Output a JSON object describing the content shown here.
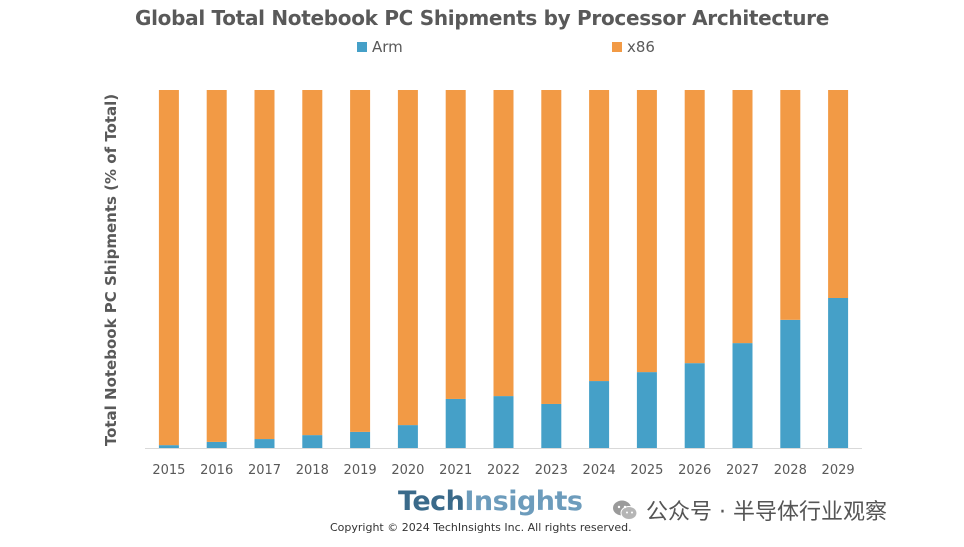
{
  "chart_data": {
    "type": "bar",
    "stacked": true,
    "percent_stacked": true,
    "title": "Global Total Notebook PC Shipments by Processor Architecture",
    "xlabel": "",
    "ylabel": "Total Notebook PC Shipments (% of Total)",
    "ylim": [
      0,
      100
    ],
    "grid": false,
    "legend_position": "top",
    "categories": [
      "2015",
      "2016",
      "2017",
      "2018",
      "2019",
      "2020",
      "2021",
      "2022",
      "2023",
      "2024",
      "2025",
      "2026",
      "2027",
      "2028",
      "2029"
    ],
    "series": [
      {
        "name": "Arm",
        "color": "#45a0c8",
        "values": [
          0.8,
          1.7,
          2.5,
          3.6,
          4.5,
          6.4,
          13.7,
          14.5,
          12.3,
          18.7,
          21.2,
          23.7,
          29.3,
          35.8,
          41.9
        ]
      },
      {
        "name": "x86",
        "color": "#f29a45",
        "values": [
          99.2,
          98.3,
          97.5,
          96.4,
          95.5,
          93.6,
          86.3,
          85.5,
          87.7,
          81.3,
          78.8,
          76.3,
          70.7,
          64.2,
          58.1
        ]
      }
    ]
  },
  "legend": {
    "arm": "Arm",
    "x86": "x86"
  },
  "footer": {
    "logo_tech": "Tech",
    "logo_insights": "Insights",
    "copyright": "Copyright © 2024 TechInsights Inc.  All rights reserved.",
    "watermark": "公众号 · 半导体行业观察"
  }
}
